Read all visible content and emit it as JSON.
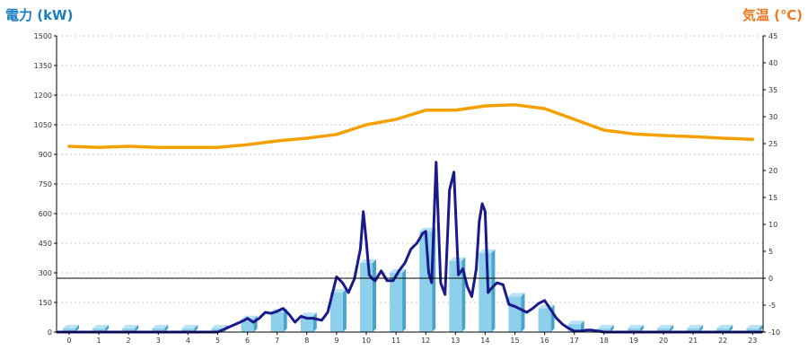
{
  "chart_data": {
    "type": "bar",
    "left_axis_title": "電力 (kW)",
    "right_axis_title": "気温 (℃)",
    "categories": [
      "0",
      "1",
      "2",
      "3",
      "4",
      "5",
      "6",
      "7",
      "8",
      "9",
      "10",
      "11",
      "12",
      "13",
      "14",
      "15",
      "16",
      "17",
      "18",
      "19",
      "20",
      "21",
      "22",
      "23"
    ],
    "left_ticks": [
      "0",
      "150",
      "300",
      "450",
      "600",
      "750",
      "900",
      "1050",
      "1200",
      "1350",
      "1500"
    ],
    "right_ticks": [
      "-10",
      "-5",
      "0",
      "5",
      "10",
      "15",
      "20",
      "25",
      "30",
      "35",
      "40",
      "45"
    ],
    "ylim_left": [
      0,
      1500
    ],
    "ylim_right": [
      -10,
      45
    ],
    "grid": true,
    "series": [
      {
        "kind": "bar",
        "axis": "left",
        "values": [
          18,
          18,
          18,
          18,
          18,
          18,
          65,
          100,
          80,
          200,
          350,
          300,
          510,
          360,
          400,
          180,
          120,
          40,
          18,
          18,
          18,
          18,
          18,
          18
        ]
      },
      {
        "kind": "line",
        "axis": "left",
        "x": [
          -0.4,
          0,
          0.5,
          1,
          1.5,
          2,
          2.5,
          3,
          3.5,
          4,
          4.5,
          5,
          5.3,
          5.6,
          5.9,
          6,
          6.2,
          6.4,
          6.6,
          6.8,
          7,
          7.2,
          7.4,
          7.6,
          7.8,
          8,
          8.2,
          8.5,
          8.7,
          9,
          9.2,
          9.4,
          9.6,
          9.8,
          9.9,
          10,
          10.1,
          10.2,
          10.3,
          10.5,
          10.7,
          10.9,
          11.1,
          11.3,
          11.5,
          11.7,
          11.9,
          12.0,
          12.1,
          12.2,
          12.35,
          12.5,
          12.65,
          12.8,
          12.95,
          13.1,
          13.25,
          13.4,
          13.55,
          13.7,
          13.8,
          13.9,
          14,
          14.1,
          14.2,
          14.4,
          14.6,
          14.8,
          15,
          15.2,
          15.4,
          15.6,
          15.8,
          16,
          16.2,
          16.4,
          16.6,
          16.8,
          17,
          17.2,
          17.4,
          17.6,
          17.8,
          18,
          18.5,
          19,
          20,
          21,
          22,
          23.3
        ],
        "values": [
          0,
          0,
          0,
          0,
          0,
          0,
          0,
          0,
          0,
          0,
          0,
          0,
          20,
          40,
          60,
          70,
          50,
          70,
          100,
          95,
          105,
          120,
          90,
          50,
          80,
          70,
          70,
          60,
          100,
          280,
          250,
          200,
          270,
          420,
          610,
          460,
          290,
          270,
          260,
          310,
          260,
          260,
          310,
          350,
          420,
          450,
          500,
          510,
          300,
          250,
          860,
          250,
          190,
          720,
          810,
          290,
          320,
          230,
          180,
          320,
          560,
          650,
          610,
          200,
          220,
          250,
          240,
          140,
          130,
          115,
          100,
          120,
          145,
          160,
          115,
          70,
          40,
          20,
          5,
          5,
          10,
          10,
          5,
          0,
          0,
          0,
          0,
          0,
          0,
          0
        ]
      },
      {
        "kind": "line",
        "axis": "right",
        "x": [
          0,
          1,
          2,
          3,
          4,
          5,
          6,
          7,
          8,
          9,
          10,
          11,
          12,
          13,
          14,
          15,
          16,
          17,
          18,
          19,
          20,
          21,
          22,
          23
        ],
        "values": [
          24.5,
          24.3,
          24.5,
          24.3,
          24.3,
          24.3,
          24.8,
          25.5,
          26.0,
          26.7,
          28.5,
          29.5,
          31.2,
          31.2,
          32.0,
          32.2,
          31.5,
          29.5,
          27.5,
          26.8,
          26.5,
          26.3,
          26.0,
          25.8
        ]
      }
    ],
    "colors": {
      "bar_face": "#8ed0ec",
      "bar_side": "#4aa3c8",
      "power_line": "#1a1a8c",
      "temp_line": "#f5a000",
      "left_title": "#1a7fc0",
      "right_title": "#f07820"
    }
  }
}
